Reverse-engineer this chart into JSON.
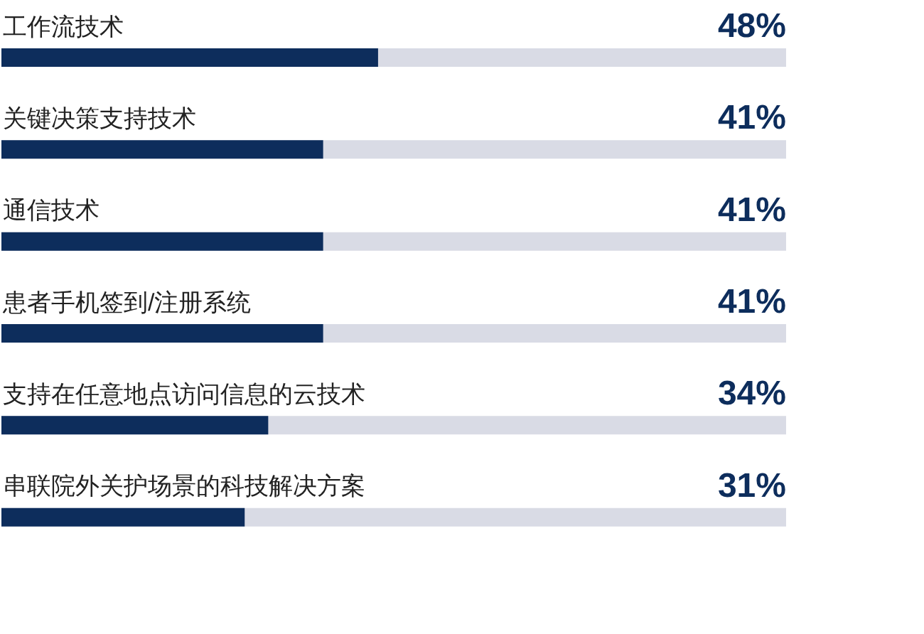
{
  "chart_data": {
    "type": "bar",
    "orientation": "horizontal",
    "categories": [
      "工作流技术",
      "关键决策支持技术",
      "通信技术",
      "患者手机签到/注册系统",
      "支持在任意地点访问信息的云技术",
      "串联院外关护场景的科技解决方案"
    ],
    "values": [
      48,
      41,
      41,
      41,
      34,
      31
    ],
    "color": "#0d2d5c",
    "value_labels": [
      "48%",
      "41%",
      "41%",
      "41%",
      "34%",
      "31%"
    ],
    "xlim": [
      0,
      100
    ],
    "tick_labels": "y"
  }
}
